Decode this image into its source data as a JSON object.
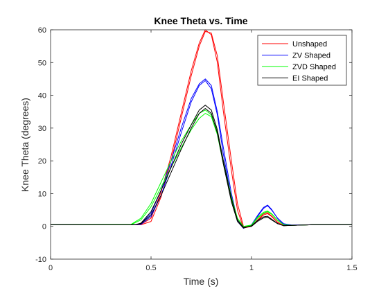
{
  "chart_data": {
    "type": "line",
    "title": "Knee Theta vs. Time",
    "xlabel": "Time (s)",
    "ylabel": "Knee Theta (degrees)",
    "xlim": [
      0,
      1.5
    ],
    "ylim": [
      -10,
      60
    ],
    "x_ticks": [
      0,
      0.5,
      1,
      1.5
    ],
    "x_tick_labels": [
      "0",
      "0.5",
      "1",
      "1.5"
    ],
    "y_ticks": [
      -10,
      0,
      10,
      20,
      30,
      40,
      50,
      60
    ],
    "y_tick_labels": [
      "-10",
      "0",
      "10",
      "20",
      "30",
      "40",
      "50",
      "60"
    ],
    "grid": false,
    "legend_position": "top-right",
    "series": [
      {
        "name": "Unshaped",
        "color": "#ff0000",
        "trials": [
          {
            "x": [
              0,
              0.42,
              0.45,
              0.5,
              0.55,
              0.6,
              0.65,
              0.7,
              0.74,
              0.77,
              0.8,
              0.83,
              0.86,
              0.9,
              0.93,
              0.96,
              1.0,
              1.03,
              1.06,
              1.08,
              1.1,
              1.13,
              1.16,
              1.2,
              1.3,
              1.5
            ],
            "y": [
              0.5,
              0.5,
              0.5,
              1.5,
              9,
              20,
              33,
              46,
              55,
              59.5,
              59,
              52,
              38,
              20,
              7,
              0,
              0.2,
              1.8,
              3.5,
              3.9,
              3,
              1.2,
              0.3,
              0.3,
              0.5,
              0.5
            ]
          },
          {
            "x": [
              0,
              0.42,
              0.45,
              0.5,
              0.55,
              0.6,
              0.65,
              0.7,
              0.74,
              0.77,
              0.8,
              0.83,
              0.86,
              0.9,
              0.93,
              0.96,
              1.0,
              1.03,
              1.06,
              1.08,
              1.1,
              1.13,
              1.16,
              1.2,
              1.3,
              1.5
            ],
            "y": [
              0.5,
              0.5,
              0.6,
              2.5,
              10.5,
              21.5,
              34.5,
              47.5,
              56,
              60,
              58.5,
              50,
              35,
              17,
              5,
              -0.5,
              0,
              2,
              3.8,
              4.2,
              3.2,
              1.3,
              0.2,
              0.3,
              0.5,
              0.5
            ]
          }
        ]
      },
      {
        "name": "ZV Shaped",
        "color": "#0000ff",
        "trials": [
          {
            "x": [
              0,
              0.42,
              0.45,
              0.5,
              0.55,
              0.6,
              0.65,
              0.7,
              0.74,
              0.77,
              0.8,
              0.83,
              0.86,
              0.9,
              0.93,
              0.96,
              1.0,
              1.03,
              1.06,
              1.08,
              1.1,
              1.13,
              1.16,
              1.2,
              1.3,
              1.5
            ],
            "y": [
              0.5,
              0.5,
              0.8,
              4,
              11,
              20,
              30,
              39,
              43.5,
              45,
              43,
              35,
              24,
              10,
              2,
              -0.5,
              0.3,
              3,
              5.5,
              6.3,
              5,
              2.5,
              0.8,
              0.4,
              0.5,
              0.5
            ]
          },
          {
            "x": [
              0,
              0.42,
              0.45,
              0.5,
              0.55,
              0.6,
              0.65,
              0.7,
              0.74,
              0.77,
              0.8,
              0.83,
              0.86,
              0.9,
              0.93,
              0.96,
              1.0,
              1.03,
              1.06,
              1.08,
              1.1,
              1.13,
              1.16,
              1.2,
              1.3,
              1.5
            ],
            "y": [
              0.5,
              0.5,
              0.6,
              3,
              9.5,
              18.5,
              28.5,
              38,
              43,
              44.5,
              42,
              34,
              22,
              8.5,
              1.5,
              -0.6,
              0.5,
              3.3,
              5.8,
              6.5,
              5.2,
              2.4,
              0.6,
              0.3,
              0.5,
              0.5
            ]
          }
        ]
      },
      {
        "name": "ZVD Shaped",
        "color": "#00ff00",
        "trials": [
          {
            "x": [
              0,
              0.4,
              0.45,
              0.5,
              0.55,
              0.6,
              0.65,
              0.7,
              0.74,
              0.77,
              0.8,
              0.83,
              0.86,
              0.9,
              0.93,
              0.96,
              1.0,
              1.03,
              1.06,
              1.08,
              1.1,
              1.13,
              1.16,
              1.2,
              1.3,
              1.5
            ],
            "y": [
              0.5,
              0.5,
              2,
              6,
              12,
              18,
              24,
              29.5,
              33,
              34.5,
              33.5,
              28,
              19,
              8,
              2,
              -0.3,
              0.3,
              2.5,
              4,
              4.5,
              3.7,
              1.8,
              0.5,
              0.3,
              0.5,
              0.5
            ]
          },
          {
            "x": [
              0,
              0.4,
              0.45,
              0.5,
              0.55,
              0.6,
              0.65,
              0.7,
              0.74,
              0.77,
              0.8,
              0.83,
              0.86,
              0.9,
              0.93,
              0.96,
              1.0,
              1.03,
              1.06,
              1.08,
              1.1,
              1.13,
              1.16,
              1.2,
              1.3,
              1.5
            ],
            "y": [
              0.5,
              0.6,
              2.5,
              7,
              13.5,
              20,
              26,
              31,
              34.5,
              35.5,
              34,
              29,
              20,
              9,
              2.5,
              0,
              0.4,
              2.8,
              4.3,
              4.7,
              3.9,
              1.9,
              0.5,
              0.3,
              0.5,
              0.5
            ]
          }
        ]
      },
      {
        "name": "EI Shaped",
        "color": "#000000",
        "trials": [
          {
            "x": [
              0,
              0.42,
              0.45,
              0.5,
              0.55,
              0.6,
              0.65,
              0.7,
              0.74,
              0.77,
              0.8,
              0.83,
              0.86,
              0.9,
              0.93,
              0.96,
              1.0,
              1.03,
              1.06,
              1.08,
              1.1,
              1.13,
              1.16,
              1.2,
              1.3,
              1.5
            ],
            "y": [
              0.5,
              0.5,
              1,
              4.5,
              11,
              18,
              25,
              31,
              35.5,
              37,
              35.5,
              29.5,
              20,
              8.5,
              2,
              -0.3,
              0,
              1.5,
              2.6,
              2.8,
              2,
              0.8,
              0.2,
              0.3,
              0.5,
              0.5
            ]
          },
          {
            "x": [
              0,
              0.42,
              0.45,
              0.5,
              0.55,
              0.6,
              0.65,
              0.7,
              0.74,
              0.77,
              0.8,
              0.83,
              0.86,
              0.9,
              0.93,
              0.96,
              1.0,
              1.03,
              1.06,
              1.08,
              1.1,
              1.13,
              1.16,
              1.2,
              1.3,
              1.5
            ],
            "y": [
              0.5,
              0.5,
              0.8,
              3.5,
              9.5,
              16.5,
              23.5,
              30,
              34.5,
              36,
              34.5,
              28.5,
              19,
              7.5,
              1.5,
              -0.5,
              0.2,
              1.8,
              2.9,
              3.1,
              2.2,
              0.9,
              0.2,
              0.3,
              0.5,
              0.5
            ]
          }
        ]
      }
    ]
  }
}
